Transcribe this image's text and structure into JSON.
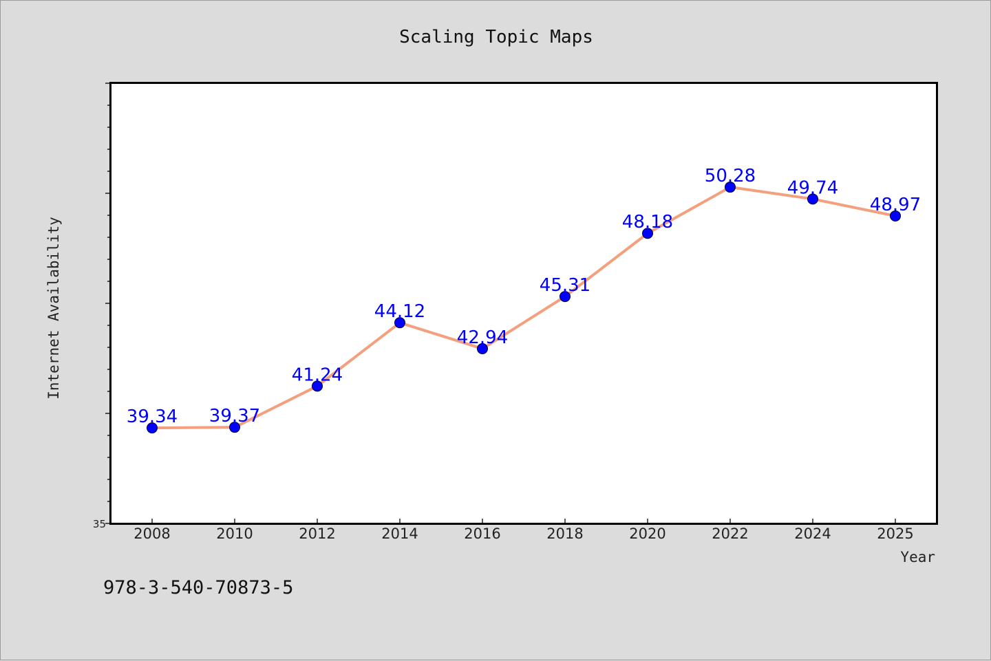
{
  "chart_data": {
    "type": "line",
    "title": "Scaling Topic Maps",
    "xlabel": "Year",
    "ylabel": "Internet Availability",
    "categories": [
      "2008",
      "2010",
      "2012",
      "2014",
      "2016",
      "2018",
      "2020",
      "2022",
      "2024",
      "2025"
    ],
    "series": [
      {
        "values": [
          39.34,
          39.37,
          41.24,
          44.12,
          42.94,
          45.31,
          48.18,
          50.28,
          49.74,
          48.97
        ],
        "labels": [
          "39.34",
          "39.37",
          "41.24",
          "44.12",
          "42.94",
          "45.31",
          "48.18",
          "50.28",
          "49.74",
          "48.97"
        ]
      }
    ],
    "ylim": [
      35,
      55
    ],
    "y_tick_labels": [
      "35"
    ],
    "grid": false,
    "colors": {
      "line": "#f4a07e",
      "marker": "#0000ff",
      "data_label": "#0000ff",
      "plot_bg": "#ffffff",
      "page_bg": "#dcdcdc"
    }
  },
  "footer": {
    "text": "978-3-540-70873-5"
  }
}
